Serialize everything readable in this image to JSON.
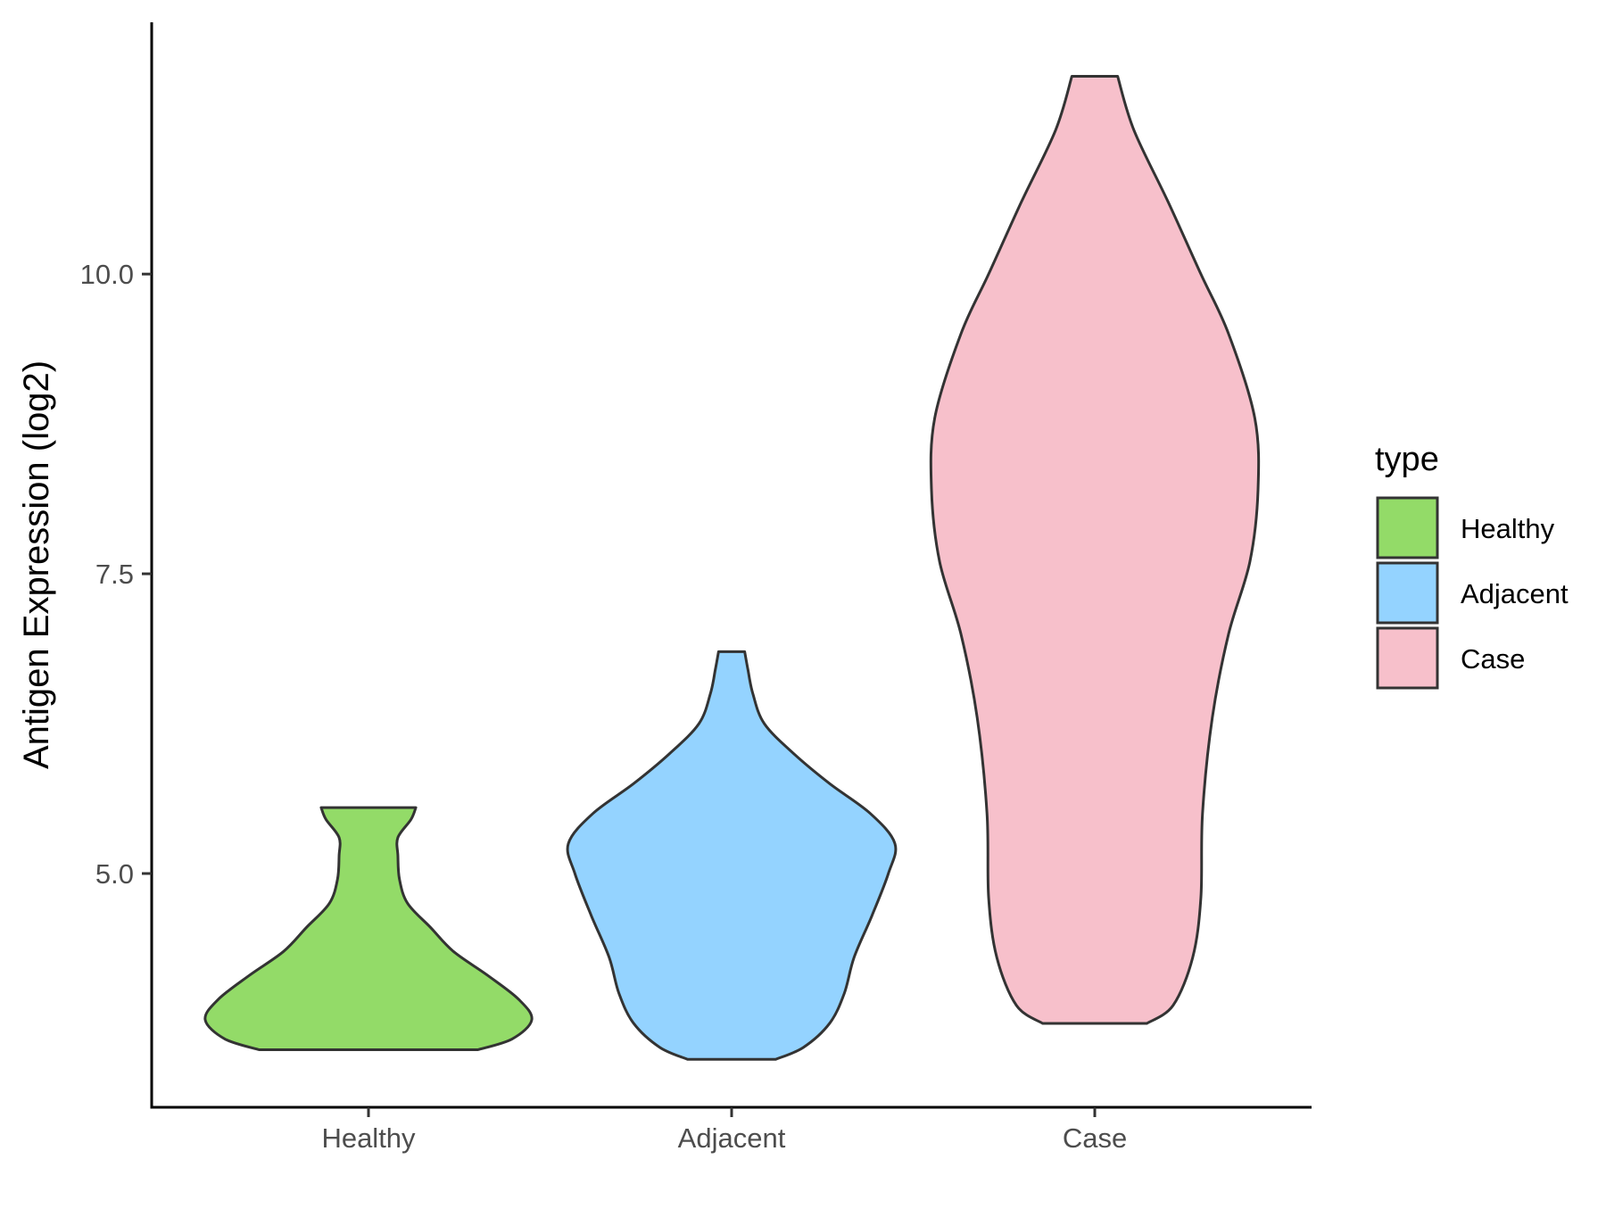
{
  "chart_data": {
    "type": "violin",
    "title": "",
    "xlabel": "",
    "ylabel": "Antigen Expression (log2)",
    "categories": [
      "Healthy",
      "Adjacent",
      "Case"
    ],
    "y_ticks": [
      "5.0",
      "7.5",
      "10.0"
    ],
    "y_tick_values": [
      5.0,
      7.5,
      10.0
    ],
    "ylim": [
      3.05,
      12.1
    ],
    "grid": false,
    "legend": {
      "title": "type",
      "position": "right",
      "entries": [
        "Healthy",
        "Adjacent",
        "Case"
      ]
    },
    "series": [
      {
        "name": "Healthy",
        "color": "#93DB68",
        "min": 3.53,
        "max": 5.55,
        "density_profile": [
          [
            3.53,
            0.67
          ],
          [
            3.62,
            0.88
          ],
          [
            3.78,
            1.0
          ],
          [
            3.95,
            0.92
          ],
          [
            4.15,
            0.73
          ],
          [
            4.35,
            0.52
          ],
          [
            4.55,
            0.38
          ],
          [
            4.75,
            0.24
          ],
          [
            4.95,
            0.19
          ],
          [
            5.15,
            0.18
          ],
          [
            5.3,
            0.18
          ],
          [
            5.45,
            0.26
          ],
          [
            5.55,
            0.29
          ]
        ]
      },
      {
        "name": "Adjacent",
        "color": "#94D3FF",
        "min": 3.45,
        "max": 6.85,
        "density_profile": [
          [
            3.45,
            0.27
          ],
          [
            3.55,
            0.44
          ],
          [
            3.75,
            0.6
          ],
          [
            4.0,
            0.69
          ],
          [
            4.3,
            0.75
          ],
          [
            4.65,
            0.86
          ],
          [
            5.0,
            0.96
          ],
          [
            5.25,
            1.0
          ],
          [
            5.5,
            0.85
          ],
          [
            5.75,
            0.6
          ],
          [
            6.0,
            0.38
          ],
          [
            6.25,
            0.2
          ],
          [
            6.5,
            0.13
          ],
          [
            6.7,
            0.1
          ],
          [
            6.85,
            0.08
          ]
        ]
      },
      {
        "name": "Case",
        "color": "#F7C0CB",
        "min": 3.75,
        "max": 11.65,
        "density_profile": [
          [
            3.75,
            0.32
          ],
          [
            3.9,
            0.48
          ],
          [
            4.3,
            0.6
          ],
          [
            4.8,
            0.65
          ],
          [
            5.5,
            0.66
          ],
          [
            6.3,
            0.72
          ],
          [
            7.0,
            0.82
          ],
          [
            7.6,
            0.95
          ],
          [
            8.2,
            1.0
          ],
          [
            8.8,
            0.98
          ],
          [
            9.5,
            0.82
          ],
          [
            10.0,
            0.65
          ],
          [
            10.6,
            0.45
          ],
          [
            11.2,
            0.24
          ],
          [
            11.65,
            0.14
          ]
        ]
      }
    ]
  }
}
